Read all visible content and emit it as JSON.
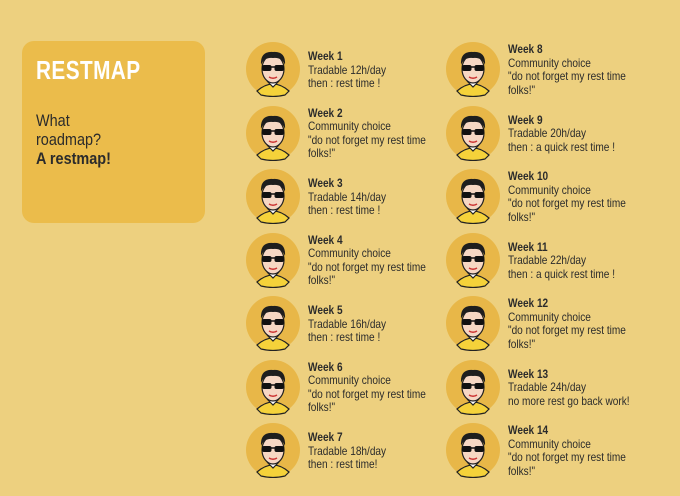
{
  "header": {
    "title": "RESTMAP",
    "lines": [
      "What",
      "roadmap?",
      "A restmap!"
    ]
  },
  "weeks": [
    {
      "title": "Week 1",
      "lines": [
        "Tradable 12h/day",
        "then : rest time !"
      ]
    },
    {
      "title": "Week 2",
      "lines": [
        "Community choice",
        "\"do not forget my rest time",
        "folks!\""
      ]
    },
    {
      "title": "Week 3",
      "lines": [
        "Tradable 14h/day",
        "then : rest time !"
      ]
    },
    {
      "title": "Week 4",
      "lines": [
        "Community choice",
        "\"do not forget my rest time",
        "folks!\""
      ]
    },
    {
      "title": "Week 5",
      "lines": [
        "Tradable 16h/day",
        "then : rest time !"
      ]
    },
    {
      "title": "Week 6",
      "lines": [
        "Community choice",
        "\"do not forget my rest time",
        "folks!\""
      ]
    },
    {
      "title": "Week 7",
      "lines": [
        "Tradable 18h/day",
        "then : rest time!"
      ]
    },
    {
      "title": "Week 8",
      "lines": [
        "Community choice",
        "\"do not forget my rest time",
        "folks!\""
      ]
    },
    {
      "title": "Week 9",
      "lines": [
        "Tradable 20h/day",
        "then : a quick rest time !"
      ]
    },
    {
      "title": "Week 10",
      "lines": [
        "Community choice",
        "\"do not forget my rest time",
        "folks!\""
      ]
    },
    {
      "title": "Week 11",
      "lines": [
        "Tradable 22h/day",
        "then : a quick rest time !"
      ]
    },
    {
      "title": "Week 12",
      "lines": [
        "Community choice",
        "\"do not forget my rest time",
        "folks!\""
      ]
    },
    {
      "title": "Week 13",
      "lines": [
        "Tradable 24h/day",
        "no more rest go back work!"
      ]
    },
    {
      "title": "Week 14",
      "lines": [
        "Community choice",
        "\"do not forget my rest time",
        "folks!\""
      ]
    }
  ]
}
